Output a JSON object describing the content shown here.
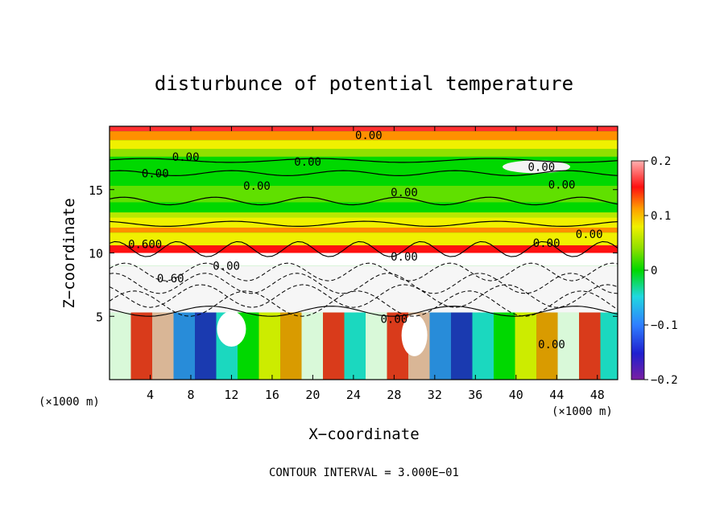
{
  "chart_data": {
    "type": "heatmap",
    "title": "disturbunce of potential temperature",
    "xlabel": "X−coordinate",
    "ylabel": "Z−coordinate",
    "x_unit": "(×1000 m)",
    "y_unit": "(×1000 m)",
    "xlim": [
      0,
      50
    ],
    "ylim": [
      0,
      20
    ],
    "x_ticks": [
      4,
      8,
      12,
      16,
      20,
      24,
      28,
      32,
      36,
      40,
      44,
      48
    ],
    "y_ticks": [
      5,
      10,
      15
    ],
    "colorbar": {
      "range": [
        -0.2,
        0.2
      ],
      "ticks": [
        0.2,
        0.1,
        0,
        -0.1,
        -0.2
      ],
      "tick_labels": [
        "0.2",
        "0.1",
        "0",
        "−0.1",
        "−0.2"
      ]
    },
    "contour_interval_label": "CONTOUR INTERVAL = 3.000E−01",
    "contour_labels": [
      {
        "text": "0.00",
        "x": 25.5,
        "z": 19.3
      },
      {
        "text": "0.00",
        "x": 7.5,
        "z": 17.6
      },
      {
        "text": "0.00",
        "x": 19.5,
        "z": 17.2
      },
      {
        "text": "0.00",
        "x": 4.5,
        "z": 16.3
      },
      {
        "text": "0.00",
        "x": 42.5,
        "z": 16.8
      },
      {
        "text": "0.00",
        "x": 14.5,
        "z": 15.3
      },
      {
        "text": "0.00",
        "x": 29.0,
        "z": 14.8
      },
      {
        "text": "0.00",
        "x": 44.5,
        "z": 15.4
      },
      {
        "text": "0.00",
        "x": 47.2,
        "z": 11.5
      },
      {
        "text": "0.00",
        "x": 43.0,
        "z": 10.8
      },
      {
        "text": "0.600",
        "x": 3.5,
        "z": 10.7
      },
      {
        "text": "0.00",
        "x": 29.0,
        "z": 9.7
      },
      {
        "text": "0.00",
        "x": 11.5,
        "z": 9.0
      },
      {
        "text": "0.60",
        "x": 6.0,
        "z": 8.0
      },
      {
        "text": "0.00",
        "x": 28.0,
        "z": 4.8
      },
      {
        "text": "0.00",
        "x": 43.5,
        "z": 2.8
      }
    ]
  }
}
